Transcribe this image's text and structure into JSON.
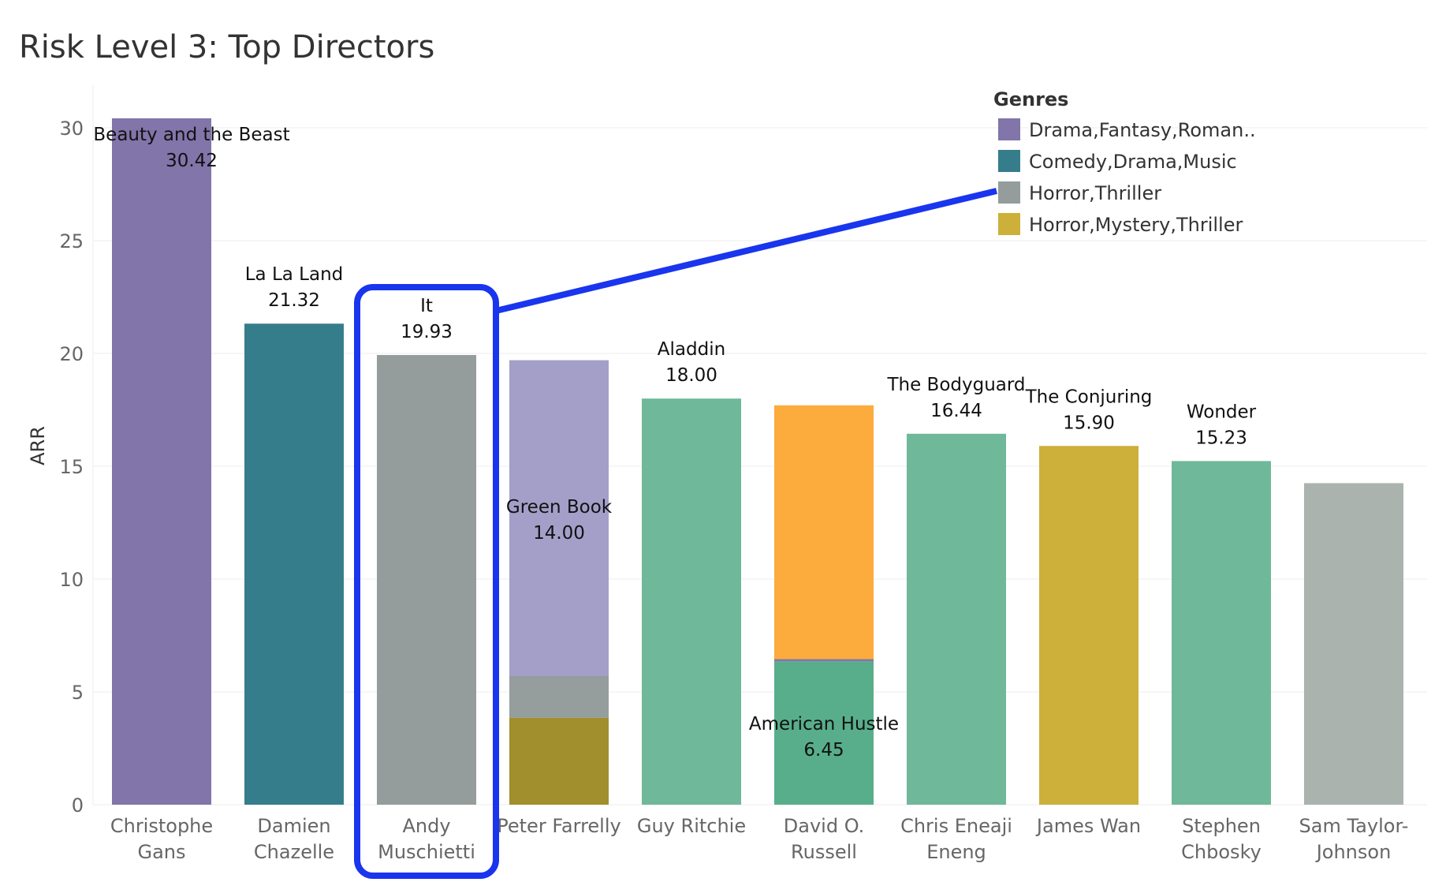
{
  "chart_data": {
    "type": "bar",
    "stacked": true,
    "title": "Risk Level 3: Top Directors",
    "xlabel": "",
    "ylabel": "ARR",
    "ylim": [
      0,
      31.5
    ],
    "yticks": [
      0,
      5,
      10,
      15,
      20,
      25,
      30
    ],
    "grid": true,
    "legend": {
      "title": "Genres",
      "position": "top-right",
      "entries": [
        {
          "label": "Drama,Fantasy,Roman..",
          "color": "#8175aa"
        },
        {
          "label": "Comedy,Drama,Music",
          "color": "#367d8c"
        },
        {
          "label": "Horror,Thriller",
          "color": "#949c9c"
        },
        {
          "label": "Horror,Mystery,Thriller",
          "color": "#ccb03a"
        }
      ]
    },
    "categories": [
      {
        "label": [
          "Christophe",
          "Gans"
        ],
        "segments": [
          {
            "value": 30.42,
            "color": "#8175aa"
          }
        ],
        "annotation": {
          "name": "Beauty and the Beast",
          "value": "30.42"
        }
      },
      {
        "label": [
          "Damien",
          "Chazelle"
        ],
        "segments": [
          {
            "value": 21.32,
            "color": "#367d8c"
          }
        ],
        "annotation": {
          "name": "La La Land",
          "value": "21.32"
        }
      },
      {
        "label": [
          "Andy",
          "Muschietti"
        ],
        "segments": [
          {
            "value": 19.93,
            "color": "#949c9c"
          }
        ],
        "annotation": {
          "name": "It",
          "value": "19.93"
        }
      },
      {
        "label": [
          "Peter Farrelly"
        ],
        "segments": [
          {
            "value": 3.85,
            "color": "#a18f2e"
          },
          {
            "value": 1.85,
            "color": "#959d9d"
          },
          {
            "value": 14.0,
            "color": "#a39fc9"
          }
        ],
        "annotation": {
          "name": "Green Book",
          "value": "14.00"
        }
      },
      {
        "label": [
          "Guy Ritchie"
        ],
        "segments": [
          {
            "value": 18.0,
            "color": "#6fb899"
          }
        ],
        "annotation": {
          "name": "Aladdin",
          "value": "18.00"
        }
      },
      {
        "label": [
          "David O.",
          "Russell"
        ],
        "segments": [
          {
            "value": 6.35,
            "color": "#58ae8b"
          },
          {
            "value": 0.1,
            "color": "#8175aa"
          },
          {
            "value": 11.25,
            "color": "#fcab3d"
          }
        ],
        "annotation": {
          "name": "American Hustle",
          "value": "6.45"
        }
      },
      {
        "label": [
          "Chris Eneaji",
          "Eneng"
        ],
        "segments": [
          {
            "value": 16.44,
            "color": "#6fb899"
          }
        ],
        "annotation": {
          "name": "The Bodyguard",
          "value": "16.44"
        }
      },
      {
        "label": [
          "James Wan"
        ],
        "segments": [
          {
            "value": 15.9,
            "color": "#ccb03a"
          }
        ],
        "annotation": {
          "name": "The Conjuring",
          "value": "15.90"
        }
      },
      {
        "label": [
          "Stephen",
          "Chbosky"
        ],
        "segments": [
          {
            "value": 15.23,
            "color": "#6fb899"
          }
        ],
        "annotation": {
          "name": "Wonder",
          "value": "15.23"
        }
      },
      {
        "label": [
          "Sam Taylor-",
          "Johnson"
        ],
        "segments": [
          {
            "value": 14.25,
            "color": "#aab3ae"
          }
        ],
        "annotation": null
      }
    ],
    "highlight": {
      "category": "Andy Muschietti",
      "color": "#1a35ee",
      "links_to_legend": "Horror,Thriller"
    }
  }
}
